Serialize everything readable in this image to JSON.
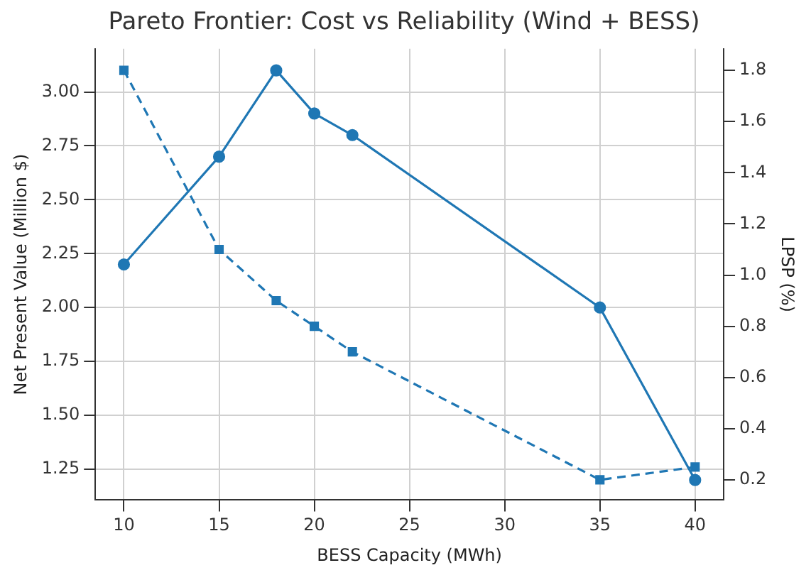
{
  "chart_data": {
    "type": "line",
    "title": "Pareto Frontier: Cost vs Reliability (Wind + BESS)",
    "xlabel": "BESS Capacity (MWh)",
    "ylabel": "Net Present Value (Million $)",
    "y2label": "LPSP (%)",
    "x": [
      10,
      15,
      18,
      20,
      22,
      35,
      40
    ],
    "series": [
      {
        "color": "#1f77b4",
        "values": [
          2.2,
          2.7,
          3.1,
          2.9,
          2.8,
          2.0,
          1.2
        ],
        "marker": "circle",
        "line_style": "solid"
      },
      {
        "color": "#1f77b4",
        "values": [
          1.8,
          1.1,
          0.9,
          0.8,
          0.7,
          0.2,
          0.25
        ],
        "axis": "y2",
        "marker": "square",
        "line_style": "dashed"
      }
    ],
    "xlim": [
      8.5,
      41.5
    ],
    "xticks": [
      10,
      15,
      20,
      25,
      30,
      35,
      40
    ],
    "ylim": [
      1.107,
      3.2
    ],
    "yticks": [
      1.25,
      {
        "value": 1.5,
        "label": "1.50"
      },
      1.75,
      {
        "value": 2,
        "label": "2.00"
      },
      2.25,
      {
        "value": 2.5,
        "label": "2.50"
      },
      2.75,
      {
        "value": 3,
        "label": "3.00"
      }
    ],
    "y2lim": [
      0.121,
      1.884
    ],
    "y2ticks": [
      0.2,
      0.4,
      0.6,
      0.8,
      {
        "value": 1,
        "label": "1.0"
      },
      1.2,
      1.4,
      1.6,
      1.8
    ],
    "grid": true
  }
}
